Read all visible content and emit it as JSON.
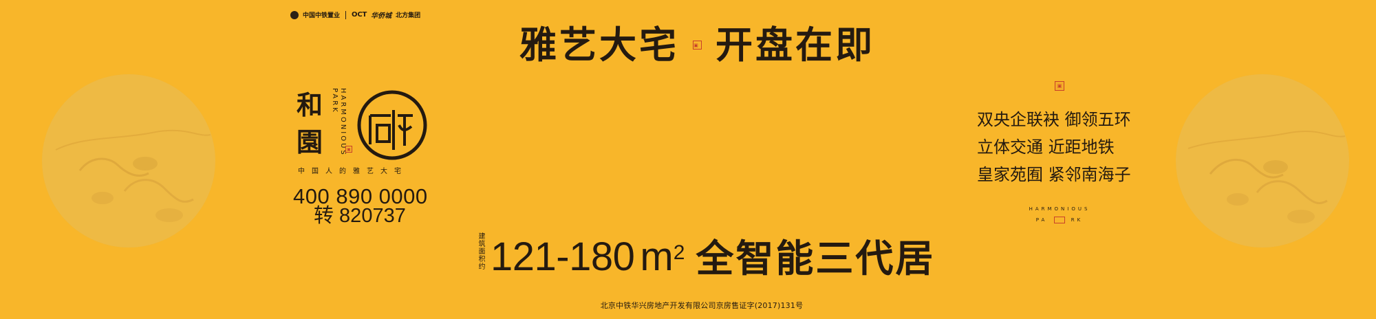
{
  "brand_bar": {
    "logo_1": "中国中铁置业",
    "logo_2": "OCT",
    "logo_3": "华侨城",
    "logo_4": "北方集团"
  },
  "headline": {
    "left": "雅艺大宅",
    "right": "开盘在即"
  },
  "brand": {
    "cn_name_1": "和",
    "cn_name_2": "園",
    "en_line_1": "HARMONIOUS",
    "en_line_2": "PARK",
    "slogan": "中国人的雅艺大宅",
    "phone_main": "400 890 0000",
    "phone_ext": "转 820737"
  },
  "features": {
    "items": [
      "双央企联袂 御领五环",
      "立体交通 近距地铁",
      "皇家苑囿 紧邻南海子"
    ],
    "en_line_1": "HARMONIOUS",
    "en_line_2_left": "PA",
    "en_line_2_right": "RK"
  },
  "bottom": {
    "area_label": "建筑面积约",
    "range": "121-180",
    "unit_base": "m",
    "unit_sup": "2",
    "title": "全智能三代居",
    "license": "北京中铁华兴房地产开发有限公司京房售证字(2017)131号"
  },
  "colors": {
    "background": "#f8b62a",
    "text": "#241a10",
    "seal": "#c8402a"
  }
}
